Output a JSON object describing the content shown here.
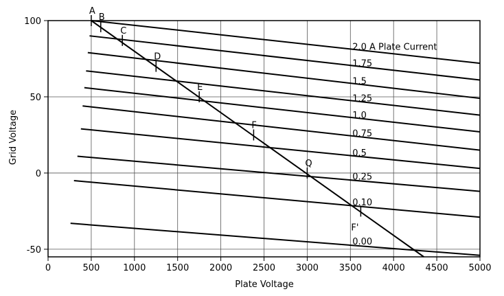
{
  "chart_data": {
    "type": "line",
    "title": "",
    "xlabel": "Plate Voltage",
    "ylabel": "Grid Voltage",
    "xlim": [
      0,
      5000
    ],
    "ylim": [
      -55,
      100
    ],
    "xticks": [
      0,
      500,
      1000,
      1500,
      2000,
      2500,
      3000,
      3500,
      4000,
      4500,
      5000
    ],
    "yticks": [
      100,
      50,
      0,
      -50
    ],
    "grid": true,
    "series": [
      {
        "name": "2.0 A Plate Current",
        "x": [
          500,
          5000
        ],
        "y": [
          100,
          72
        ]
      },
      {
        "name": "1.75",
        "x": [
          480,
          5000
        ],
        "y": [
          90,
          61
        ]
      },
      {
        "name": "1.5",
        "x": [
          460,
          5000
        ],
        "y": [
          79,
          49
        ]
      },
      {
        "name": "1.25",
        "x": [
          440,
          5000
        ],
        "y": [
          67,
          38
        ]
      },
      {
        "name": "1.0",
        "x": [
          420,
          5000
        ],
        "y": [
          56,
          27
        ]
      },
      {
        "name": "0.75",
        "x": [
          400,
          5000
        ],
        "y": [
          44,
          15
        ]
      },
      {
        "name": "0.5",
        "x": [
          380,
          5000
        ],
        "y": [
          29,
          3
        ]
      },
      {
        "name": "0.25",
        "x": [
          340,
          5000
        ],
        "y": [
          11,
          -12
        ]
      },
      {
        "name": "0.10",
        "x": [
          300,
          5000
        ],
        "y": [
          -5,
          -29
        ]
      },
      {
        "name": "0.00",
        "x": [
          260,
          5000
        ],
        "y": [
          -33,
          -54
        ]
      }
    ],
    "load_line": {
      "x": [
        500,
        4350
      ],
      "y": [
        100,
        -55
      ]
    },
    "annotations": [
      {
        "label": "A",
        "x": 500,
        "y": 100
      },
      {
        "label": "B",
        "x": 610,
        "y": 96
      },
      {
        "label": "C",
        "x": 860,
        "y": 87
      },
      {
        "label": "D",
        "x": 1250,
        "y": 70
      },
      {
        "label": "E",
        "x": 1750,
        "y": 50
      },
      {
        "label": "F",
        "x": 2380,
        "y": 25
      },
      {
        "label": "Q",
        "x": 3000,
        "y": 0
      },
      {
        "label": "F'",
        "x": 3620,
        "y": -25
      }
    ]
  }
}
